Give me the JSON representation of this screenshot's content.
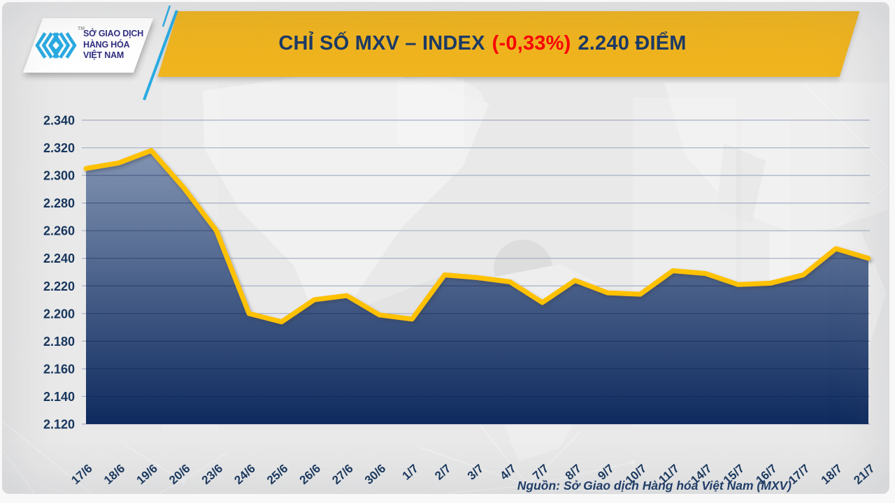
{
  "header": {
    "logo": {
      "line1": "SỞ GIAO DỊCH",
      "line2": "HÀNG HÓA",
      "line3": "VIỆT NAM",
      "trademark": "TM",
      "brand_color": "#29ABE2",
      "text_color": "#312E81"
    },
    "title": {
      "main": "CHỈ SỐ MXV – INDEX",
      "change": "(-0,33%)",
      "value": "2.240 ĐIỂM",
      "text_color": "#1B3A66",
      "change_color": "#FB0007",
      "banner_color": "#F0B41E"
    }
  },
  "chart_data": {
    "type": "area",
    "title": "CHỈ SỐ MXV – INDEX (-0,33%) 2.240 ĐIỂM",
    "categories": [
      "17/6",
      "18/6",
      "19/6",
      "20/6",
      "23/6",
      "24/6",
      "25/6",
      "26/6",
      "27/6",
      "30/6",
      "1/7",
      "2/7",
      "3/7",
      "4/7",
      "7/7",
      "8/7",
      "9/7",
      "10/7",
      "11/7",
      "14/7",
      "15/7",
      "16/7",
      "17/7",
      "18/7",
      "21/7"
    ],
    "values": [
      2305,
      2309,
      2318,
      2291,
      2260,
      2200,
      2194,
      2210,
      2213,
      2199,
      2196,
      2228,
      2226,
      2223,
      2208,
      2224,
      2215,
      2214,
      2231,
      2229,
      2221,
      2222,
      2228,
      2247,
      2240
    ],
    "ylim": [
      2120,
      2340
    ],
    "y_ticks": [
      {
        "value": 2340,
        "label": "2.340"
      },
      {
        "value": 2320,
        "label": "2.320"
      },
      {
        "value": 2300,
        "label": "2.300"
      },
      {
        "value": 2280,
        "label": "2.280"
      },
      {
        "value": 2260,
        "label": "2.260"
      },
      {
        "value": 2240,
        "label": "2.240"
      },
      {
        "value": 2220,
        "label": "2.220"
      },
      {
        "value": 2200,
        "label": "2.200"
      },
      {
        "value": 2180,
        "label": "2.180"
      },
      {
        "value": 2160,
        "label": "2.160"
      },
      {
        "value": 2140,
        "label": "2.140"
      },
      {
        "value": 2120,
        "label": "2.120"
      }
    ],
    "grid": "horizontal",
    "legend": "none",
    "line_color": "#FFC103",
    "area_gradient_top": "#8FA0BC",
    "area_gradient_bottom": "#0E2A5E",
    "grid_color": "#A6AFC5",
    "label_color": "#17365D"
  },
  "footer": {
    "source": "Nguồn: Sở Giao dịch Hàng hóa Việt Nam (MXV)"
  }
}
